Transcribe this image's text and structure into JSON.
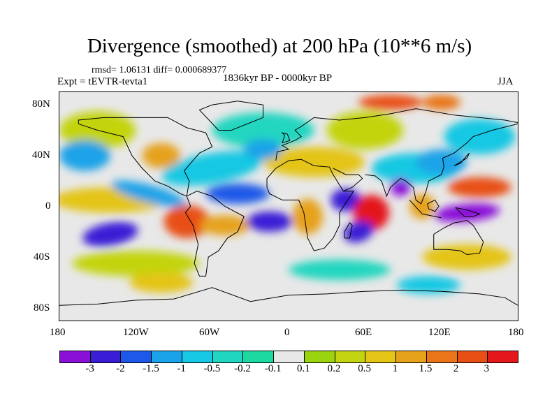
{
  "title": "Divergence (smoothed) at 200 hPa (10**6 m/s)",
  "stats_text": "rmsd= 1.06131 diff= 0.000689377",
  "experiment_text": "Expt = tEVTR-tevta1",
  "period_text": "1836kyr BP - 0000kyr BP",
  "season_text": "JJA",
  "lat_ticks": [
    "80N",
    "40N",
    "0",
    "40S",
    "80S"
  ],
  "lon_ticks": [
    "180",
    "120W",
    "60W",
    "0",
    "60E",
    "120E",
    "180"
  ],
  "colorbar": {
    "colors": [
      "#8a10d8",
      "#3a1ed6",
      "#1d58e8",
      "#1aa3e8",
      "#16c8e3",
      "#20d6c0",
      "#1cd9a2",
      "#e8e8e8",
      "#9ad40e",
      "#c3d410",
      "#e4c414",
      "#e6a21a",
      "#e97518",
      "#e84f14",
      "#e4181a"
    ],
    "labels": [
      "-3",
      "-2",
      "-1.5",
      "-1",
      "-0.5",
      "-0.2",
      "-0.1",
      "0.1",
      "0.2",
      "0.5",
      "1",
      "1.5",
      "2",
      "3"
    ]
  },
  "chart_data": {
    "type": "heatmap",
    "projection": "cylindrical equidistant",
    "field": "Divergence (smoothed) at 200 hPa (10**6 m/s)",
    "lon_range": [
      -180,
      180
    ],
    "lat_range": [
      -90,
      90
    ],
    "contour_levels": [
      -3,
      -2,
      -1.5,
      -1,
      -0.5,
      -0.2,
      -0.1,
      0.1,
      0.2,
      0.5,
      1,
      1.5,
      2,
      3
    ],
    "approx_features": [
      {
        "lon": 65,
        "lat": -5,
        "value": 3
      },
      {
        "lon": 150,
        "lat": 12,
        "value": 3
      },
      {
        "lon": 140,
        "lat": -5,
        "value": -3
      },
      {
        "lon": 90,
        "lat": 14,
        "value": -3
      },
      {
        "lon": 45,
        "lat": 5,
        "value": -3
      },
      {
        "lon": -80,
        "lat": -10,
        "value": 2
      },
      {
        "lon": -140,
        "lat": -25,
        "value": -2
      },
      {
        "lon": -10,
        "lat": -10,
        "value": -2
      },
      {
        "lon": 80,
        "lat": 80,
        "value": 3
      }
    ]
  }
}
